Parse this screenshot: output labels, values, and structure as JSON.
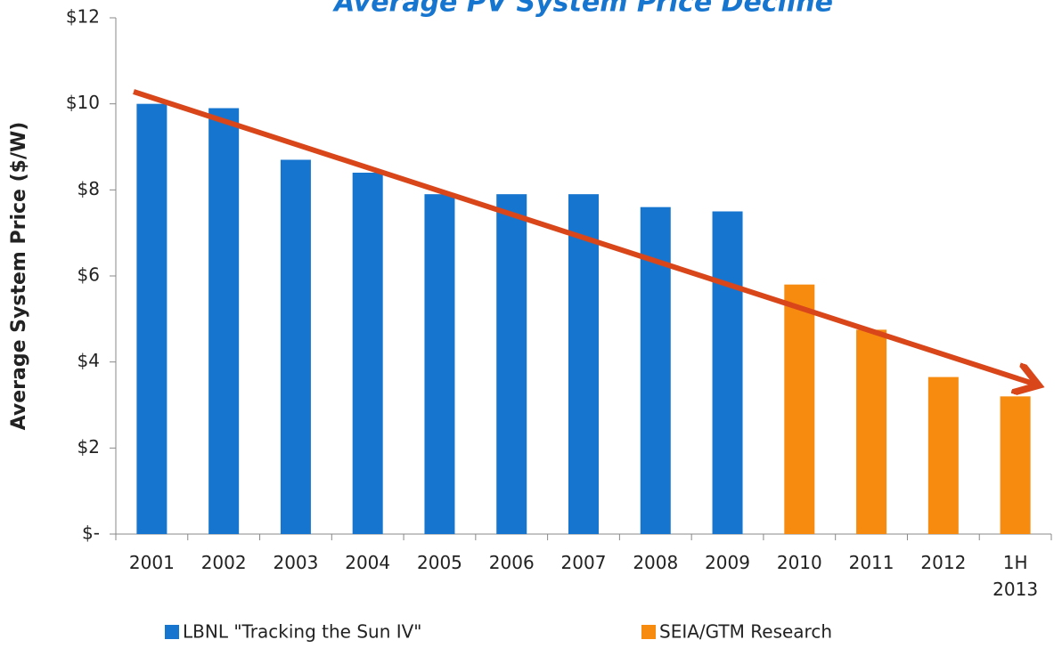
{
  "chart_data": {
    "type": "bar",
    "title": "Average PV System Price Decline",
    "y_label": "Average System Price ($/W)",
    "categories": [
      "2001",
      "2002",
      "2003",
      "2004",
      "2005",
      "2006",
      "2007",
      "2008",
      "2009",
      "2010",
      "2011",
      "2012",
      "1H 2013"
    ],
    "series": [
      {
        "name": "LBNL \"Tracking the Sun IV\"",
        "color": "#1676cf",
        "values": [
          10.0,
          9.9,
          8.7,
          8.4,
          7.9,
          7.9,
          7.9,
          7.6,
          7.5,
          null,
          null,
          null,
          null
        ]
      },
      {
        "name": "SEIA/GTM Research",
        "color": "#f68b0f",
        "values": [
          null,
          null,
          null,
          null,
          null,
          null,
          null,
          null,
          null,
          5.8,
          4.75,
          3.65,
          3.2
        ]
      }
    ],
    "ylim": [
      0,
      12
    ],
    "yticks": [
      {
        "value": 0,
        "label": "$-"
      },
      {
        "value": 2,
        "label": "$2"
      },
      {
        "value": 4,
        "label": "$4"
      },
      {
        "value": 6,
        "label": "$6"
      },
      {
        "value": 8,
        "label": "$8"
      },
      {
        "value": 10,
        "label": "$10"
      },
      {
        "value": 12,
        "label": "$12"
      }
    ],
    "grid": false,
    "legend": "bottom"
  }
}
